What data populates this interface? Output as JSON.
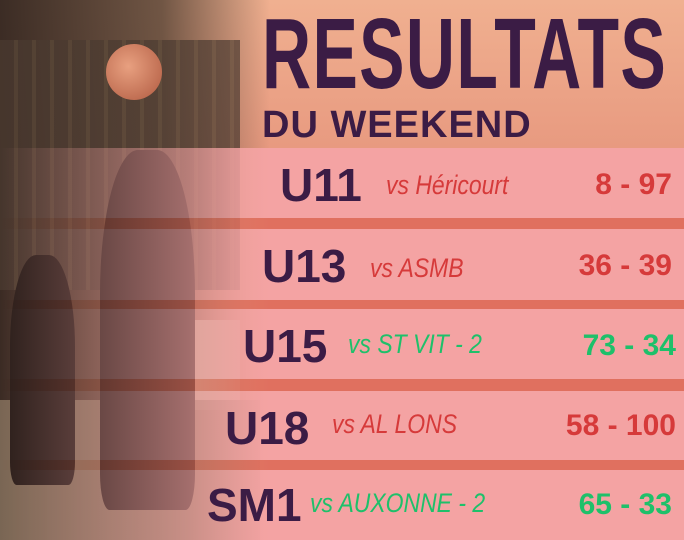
{
  "title": "RESULTATS",
  "subtitle": "DU WEEKEND",
  "colors": {
    "team": "#3b1c45",
    "loss": "#d63a3a",
    "win": "#1ec06a",
    "row": "#f4a3a3",
    "separator": "#e0705f"
  },
  "results": [
    {
      "team": "U11",
      "opponent": "vs Héricourt",
      "score": "8 - 97",
      "outcome": "loss"
    },
    {
      "team": "U13",
      "opponent": "vs ASMB",
      "score": "36 - 39",
      "outcome": "loss"
    },
    {
      "team": "U15",
      "opponent": "vs ST VIT - 2",
      "score": "73 - 34",
      "outcome": "win"
    },
    {
      "team": "U18",
      "opponent": "vs AL LONS",
      "score": "58 - 100",
      "outcome": "loss"
    },
    {
      "team": "SM1",
      "opponent": "vs AUXONNE - 2",
      "score": "65 - 33",
      "outcome": "win"
    }
  ]
}
